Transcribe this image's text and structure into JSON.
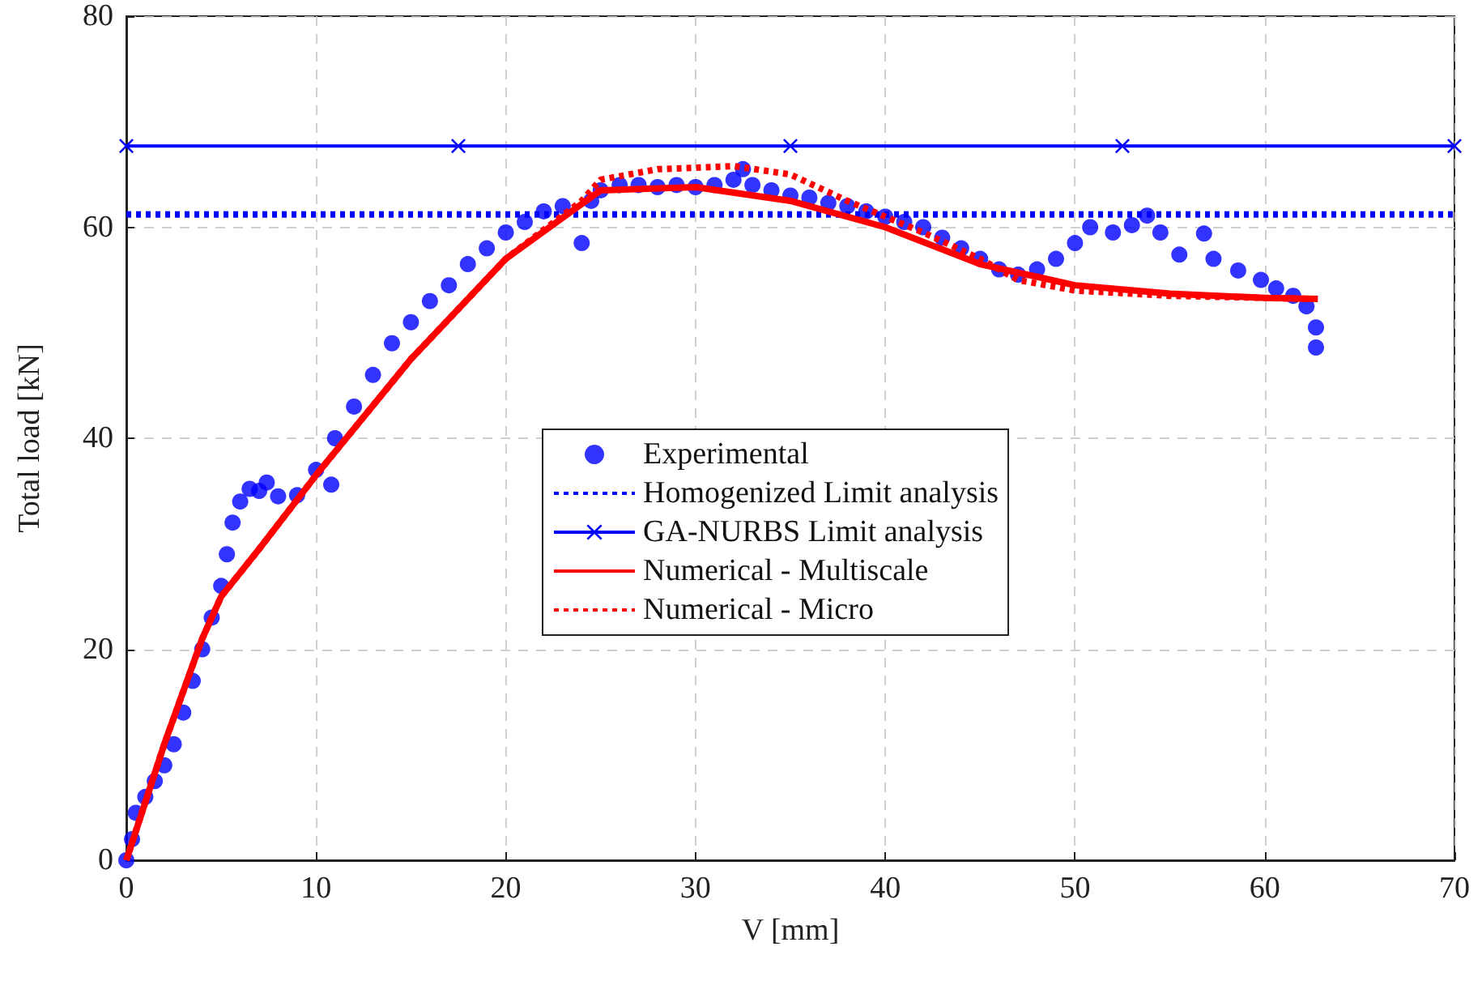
{
  "chart_data": {
    "type": "line",
    "xlabel": "V [mm]",
    "ylabel": "Total load [kN]",
    "xlim": [
      0,
      70
    ],
    "xticks": [
      0,
      10,
      20,
      30,
      40,
      50,
      60,
      70
    ],
    "ylim": [
      0,
      80
    ],
    "yticks": [
      0,
      20,
      40,
      60,
      80
    ],
    "grid": true,
    "legend": "center",
    "series": [
      {
        "name": "Experimental",
        "type": "scatter",
        "marker": "circle",
        "color": "#0000ff",
        "x": [
          0,
          0.3,
          0.5,
          1,
          1.5,
          2,
          2.5,
          3,
          3.5,
          4,
          4.5,
          5,
          5.3,
          5.6,
          6,
          6.5,
          7,
          7.4,
          8,
          9,
          10,
          10.8,
          11,
          12,
          13,
          14,
          15,
          16,
          17,
          18,
          19,
          20,
          21,
          22,
          23,
          24,
          24.5,
          25,
          26,
          27,
          28,
          29,
          30,
          31,
          32,
          32.5,
          33,
          34,
          35,
          36,
          37,
          38,
          39,
          40,
          41,
          42,
          43,
          44,
          45,
          46,
          47,
          48,
          49,
          50,
          50.8,
          52,
          53,
          53.8,
          54.5,
          55.5,
          56.8,
          57.3,
          58.6,
          59.8,
          60.6,
          61.5,
          62.2,
          62.7,
          62.7
        ],
        "values": [
          0,
          2,
          4.5,
          6,
          7.5,
          9,
          11,
          14,
          17,
          20,
          23,
          26,
          29,
          32,
          34,
          35.2,
          35,
          35.8,
          34.5,
          34.6,
          37,
          35.6,
          40,
          43,
          46,
          49,
          51,
          53,
          54.5,
          56.5,
          58,
          59.5,
          60.5,
          61.5,
          62,
          58.5,
          62.5,
          63.5,
          64,
          64,
          63.8,
          64,
          63.8,
          64,
          64.5,
          65.5,
          64,
          63.5,
          63,
          62.8,
          62.3,
          62,
          61.5,
          61,
          60.5,
          60,
          59,
          58,
          57,
          56,
          55.5,
          56,
          57,
          58.5,
          60,
          59.5,
          60.2,
          61.1,
          59.5,
          57.4,
          59.4,
          57,
          55.9,
          55,
          54.2,
          53.5,
          52.5,
          50.5,
          48.6
        ]
      },
      {
        "name": "Homogenized Limit analysis",
        "marker": "none",
        "line_style": "dotted",
        "color": "#0000ff",
        "x": [
          0,
          70
        ],
        "values": [
          61.2,
          61.2
        ]
      },
      {
        "name": "GA-NURBS Limit analysis",
        "marker": "cross",
        "line_style": "solid",
        "color": "#0000ff",
        "x": [
          0,
          17.5,
          35,
          52.5,
          70
        ],
        "values": [
          67.7,
          67.7,
          67.7,
          67.7,
          67.7
        ]
      },
      {
        "name": "Numerical - Multiscale",
        "marker": "none",
        "line_style": "solid",
        "color": "#ff0000",
        "x": [
          0,
          2,
          4,
          5,
          7,
          10,
          15,
          20,
          25,
          30,
          35,
          40,
          45,
          50,
          55,
          60,
          62.8
        ],
        "values": [
          0,
          11,
          21,
          25,
          29.5,
          36.5,
          47.5,
          57,
          63.5,
          63.8,
          62.5,
          60,
          56.5,
          54.5,
          53.7,
          53.3,
          53.2
        ]
      },
      {
        "name": "Numerical - Micro",
        "marker": "none",
        "line_style": "dotted",
        "color": "#ff0000",
        "x": [
          0,
          2,
          4,
          5,
          7,
          10,
          15,
          20,
          24,
          25,
          28,
          32,
          35,
          38,
          42,
          45,
          47,
          50,
          55,
          60,
          62.5
        ],
        "values": [
          0,
          11,
          21,
          25,
          29.5,
          36.5,
          47.5,
          57,
          62.5,
          64.5,
          65.5,
          65.8,
          65,
          62.5,
          59.5,
          57,
          55,
          54,
          53.5,
          53.3,
          53.2
        ]
      }
    ]
  }
}
